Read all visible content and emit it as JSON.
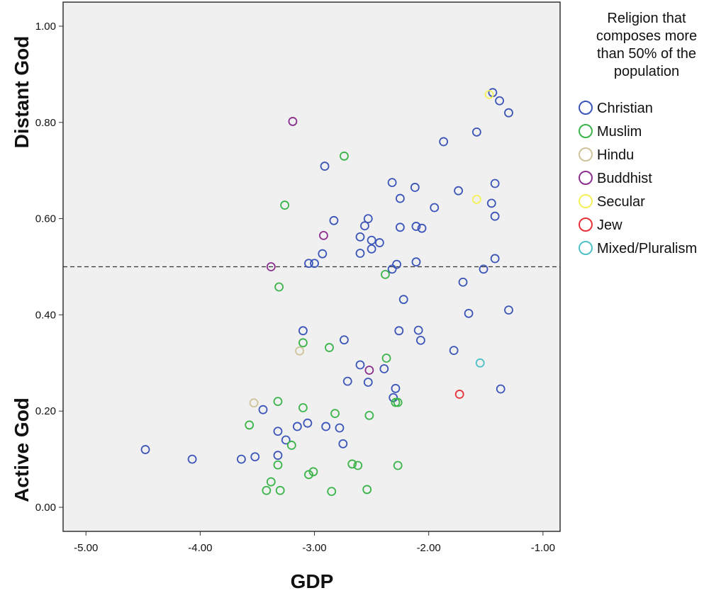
{
  "chart_data": {
    "type": "scatter",
    "xlabel": "GDP",
    "ylabel_top": "Distant God",
    "ylabel_bottom": "Active God",
    "xlim": [
      -5.2,
      -0.85
    ],
    "ylim": [
      -0.05,
      1.05
    ],
    "x_ticks": [
      -5,
      -4,
      -3,
      -2,
      -1
    ],
    "x_tick_labels": [
      "-5.00",
      "-4.00",
      "-3.00",
      "-2.00",
      "-1.00"
    ],
    "y_ticks": [
      0,
      0.2,
      0.4,
      0.6,
      0.8,
      1.0
    ],
    "y_tick_labels": [
      "0.00",
      "0.20",
      "0.40",
      "0.60",
      "0.80",
      "1.00"
    ],
    "reference_line_y": 0.5,
    "grid": false,
    "legend": {
      "title_lines": [
        "Religion that",
        "composes more",
        "than 50% of the",
        "population"
      ],
      "position": "right"
    },
    "series": [
      {
        "name": "Christian",
        "color": "#3b55b8",
        "points": [
          [
            -4.48,
            0.12
          ],
          [
            -4.07,
            0.1
          ],
          [
            -3.64,
            0.1
          ],
          [
            -3.52,
            0.105
          ],
          [
            -3.32,
            0.108
          ],
          [
            -3.32,
            0.158
          ],
          [
            -3.25,
            0.14
          ],
          [
            -3.15,
            0.168
          ],
          [
            -3.06,
            0.175
          ],
          [
            -3.45,
            0.203
          ],
          [
            -2.9,
            0.168
          ],
          [
            -2.78,
            0.165
          ],
          [
            -2.75,
            0.132
          ],
          [
            -3.1,
            0.367
          ],
          [
            -2.74,
            0.348
          ],
          [
            -2.71,
            0.262
          ],
          [
            -2.6,
            0.296
          ],
          [
            -2.53,
            0.26
          ],
          [
            -2.39,
            0.288
          ],
          [
            -2.29,
            0.247
          ],
          [
            -2.31,
            0.228
          ],
          [
            -2.26,
            0.367
          ],
          [
            -2.22,
            0.432
          ],
          [
            -2.09,
            0.368
          ],
          [
            -2.07,
            0.347
          ],
          [
            -1.78,
            0.326
          ],
          [
            -1.37,
            0.246
          ],
          [
            -1.3,
            0.41
          ],
          [
            -1.65,
            0.403
          ],
          [
            -1.7,
            0.468
          ],
          [
            -1.52,
            0.495
          ],
          [
            -1.42,
            0.517
          ],
          [
            -2.11,
            0.51
          ],
          [
            -2.28,
            0.505
          ],
          [
            -2.32,
            0.495
          ],
          [
            -3.05,
            0.507
          ],
          [
            -3.0,
            0.507
          ],
          [
            -2.93,
            0.527
          ],
          [
            -2.6,
            0.528
          ],
          [
            -2.5,
            0.537
          ],
          [
            -2.43,
            0.55
          ],
          [
            -2.5,
            0.555
          ],
          [
            -2.6,
            0.562
          ],
          [
            -2.56,
            0.585
          ],
          [
            -2.53,
            0.6
          ],
          [
            -2.83,
            0.596
          ],
          [
            -2.25,
            0.582
          ],
          [
            -2.11,
            0.584
          ],
          [
            -2.06,
            0.58
          ],
          [
            -1.95,
            0.623
          ],
          [
            -2.25,
            0.642
          ],
          [
            -2.32,
            0.675
          ],
          [
            -2.12,
            0.665
          ],
          [
            -1.74,
            0.658
          ],
          [
            -2.91,
            0.709
          ],
          [
            -1.87,
            0.76
          ],
          [
            -1.58,
            0.78
          ],
          [
            -1.3,
            0.82
          ],
          [
            -1.38,
            0.845
          ],
          [
            -1.44,
            0.862
          ],
          [
            -1.45,
            0.632
          ],
          [
            -1.42,
            0.673
          ],
          [
            -1.42,
            0.605
          ]
        ]
      },
      {
        "name": "Muslim",
        "color": "#3ab44a",
        "points": [
          [
            -3.42,
            0.035
          ],
          [
            -3.3,
            0.035
          ],
          [
            -2.85,
            0.033
          ],
          [
            -2.54,
            0.037
          ],
          [
            -3.05,
            0.068
          ],
          [
            -3.01,
            0.074
          ],
          [
            -2.67,
            0.09
          ],
          [
            -2.62,
            0.087
          ],
          [
            -2.27,
            0.087
          ],
          [
            -3.32,
            0.088
          ],
          [
            -3.38,
            0.053
          ],
          [
            -3.2,
            0.129
          ],
          [
            -3.57,
            0.171
          ],
          [
            -3.1,
            0.207
          ],
          [
            -2.82,
            0.195
          ],
          [
            -2.52,
            0.191
          ],
          [
            -2.29,
            0.218
          ],
          [
            -2.27,
            0.218
          ],
          [
            -3.32,
            0.22
          ],
          [
            -2.37,
            0.31
          ],
          [
            -2.87,
            0.332
          ],
          [
            -3.1,
            0.342
          ],
          [
            -3.31,
            0.458
          ],
          [
            -2.38,
            0.484
          ],
          [
            -3.26,
            0.628
          ],
          [
            -2.74,
            0.73
          ]
        ]
      },
      {
        "name": "Hindu",
        "color": "#cfc49a",
        "points": [
          [
            -3.53,
            0.217
          ],
          [
            -3.13,
            0.325
          ]
        ]
      },
      {
        "name": "Buddhist",
        "color": "#8b2f8e",
        "points": [
          [
            -3.19,
            0.802
          ],
          [
            -2.92,
            0.565
          ],
          [
            -3.38,
            0.5
          ],
          [
            -2.52,
            0.285
          ]
        ]
      },
      {
        "name": "Secular",
        "color": "#f4f05a",
        "points": [
          [
            -1.47,
            0.858
          ],
          [
            -1.58,
            0.64
          ]
        ]
      },
      {
        "name": "Jew",
        "color": "#e8323a",
        "points": [
          [
            -1.73,
            0.235
          ]
        ]
      },
      {
        "name": "Mixed/Pluralism",
        "color": "#4ec2c8",
        "points": [
          [
            -1.55,
            0.3
          ]
        ]
      }
    ]
  }
}
